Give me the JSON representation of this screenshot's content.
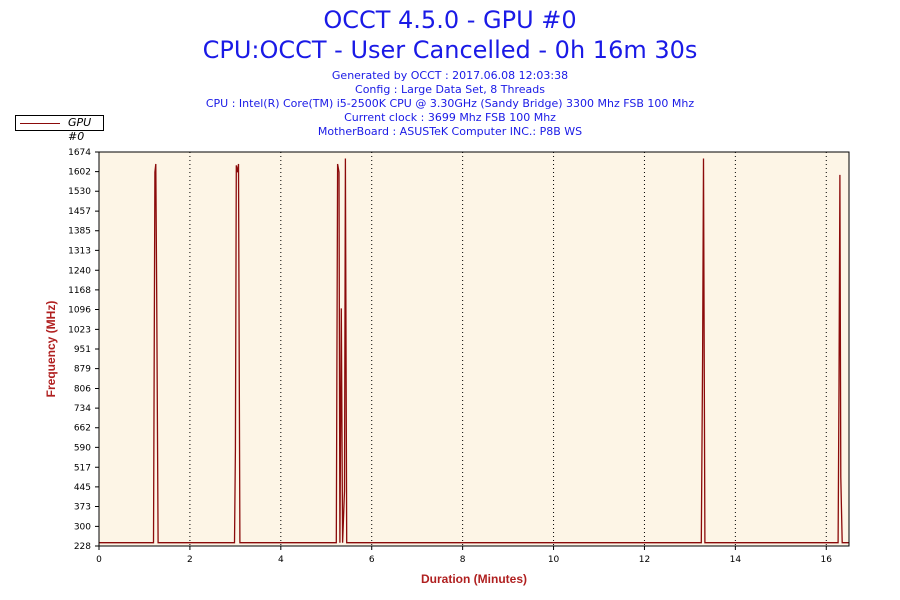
{
  "header": {
    "title_line1": "OCCT 4.5.0 - GPU #0",
    "title_line2": "CPU:OCCT - User Cancelled - 0h 16m 30s",
    "info": [
      "Generated by OCCT : 2017.06.08 12:03:38",
      "Config : Large Data Set, 8 Threads",
      "CPU : Intel(R) Core(TM) i5-2500K CPU @ 3.30GHz (Sandy Bridge) 3300 Mhz FSB 100 Mhz",
      "Current clock : 3699 Mhz FSB 100 Mhz",
      "MotherBoard : ASUSTeK Computer INC.: P8B WS"
    ]
  },
  "colors": {
    "line": "#8b0a0a",
    "plot_background": "#fdf5e6",
    "title": "#1a1ae6",
    "axis_title": "#b02020"
  },
  "chart_data": {
    "type": "line",
    "xlabel": "Duration (Minutes)",
    "ylabel": "Frequency (MHz)",
    "xlim": [
      0,
      16.5
    ],
    "ylim": [
      228,
      1674
    ],
    "x_ticks": [
      0,
      2,
      4,
      6,
      8,
      10,
      12,
      14,
      16
    ],
    "y_ticks": [
      228,
      300,
      373,
      445,
      517,
      590,
      662,
      734,
      806,
      879,
      951,
      1023,
      1096,
      1168,
      1240,
      1313,
      1385,
      1457,
      1530,
      1602,
      1674
    ],
    "grid": "vertical dotted",
    "legend": "top-left",
    "series": [
      {
        "name": "GPU #0",
        "points": [
          [
            0,
            240
          ],
          [
            1.2,
            240
          ],
          [
            1.23,
            1600
          ],
          [
            1.25,
            1630
          ],
          [
            1.27,
            1150
          ],
          [
            1.3,
            240
          ],
          [
            2.98,
            240
          ],
          [
            3.0,
            580
          ],
          [
            3.02,
            1625
          ],
          [
            3.05,
            1600
          ],
          [
            3.07,
            1630
          ],
          [
            3.1,
            240
          ],
          [
            5.22,
            240
          ],
          [
            5.25,
            1630
          ],
          [
            5.28,
            1600
          ],
          [
            5.3,
            240
          ],
          [
            5.33,
            1100
          ],
          [
            5.36,
            240
          ],
          [
            5.4,
            430
          ],
          [
            5.42,
            1650
          ],
          [
            5.45,
            240
          ],
          [
            13.25,
            240
          ],
          [
            13.28,
            920
          ],
          [
            13.3,
            1650
          ],
          [
            13.33,
            240
          ],
          [
            16.26,
            240
          ],
          [
            16.28,
            820
          ],
          [
            16.3,
            1590
          ],
          [
            16.32,
            480
          ],
          [
            16.35,
            240
          ],
          [
            16.5,
            240
          ]
        ]
      }
    ]
  }
}
